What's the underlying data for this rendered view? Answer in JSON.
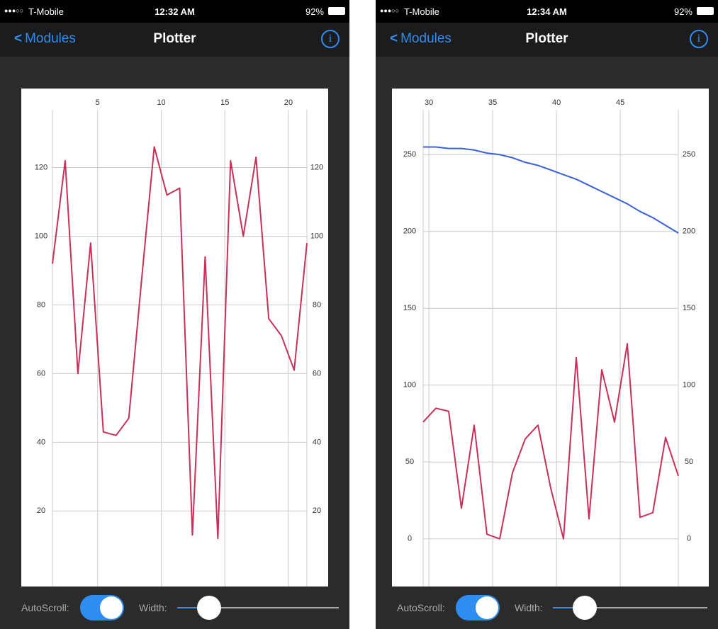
{
  "screens": [
    {
      "status": {
        "carrier": "T-Mobile",
        "time": "12:32 AM",
        "battery": "92%"
      },
      "nav": {
        "back": "Modules",
        "title": "Plotter"
      },
      "controls": {
        "autoscroll": "AutoScroll:",
        "width": "Width:"
      }
    },
    {
      "status": {
        "carrier": "T-Mobile",
        "time": "12:34 AM",
        "battery": "92%"
      },
      "nav": {
        "back": "Modules",
        "title": "Plotter"
      },
      "controls": {
        "autoscroll": "AutoScroll:",
        "width": "Width:"
      }
    }
  ],
  "chart_data": [
    {
      "type": "line",
      "grid": true,
      "x": [
        1.45,
        2.45,
        3.45,
        4.45,
        5.45,
        6.45,
        7.45,
        8.45,
        9.45,
        10.45,
        11.45,
        12.45,
        13.45,
        14.45,
        15.45,
        16.45,
        17.45,
        18.45,
        19.45,
        20.45,
        21.45
      ],
      "xlim": [
        1.45,
        21.45
      ],
      "xticks": [
        5,
        10,
        15,
        20
      ],
      "ylim": [
        -2,
        143
      ],
      "yticks": [
        20,
        40,
        60,
        80,
        100,
        120
      ],
      "series": [
        {
          "color": "#c8305a",
          "values": [
            92,
            122,
            60,
            98,
            43,
            42,
            47,
            87,
            126,
            112,
            114,
            13,
            94,
            12,
            122,
            100,
            123,
            76,
            71,
            61,
            98
          ]
        }
      ]
    },
    {
      "type": "line",
      "grid": true,
      "x": [
        29.55,
        30.55,
        31.55,
        32.55,
        33.55,
        34.55,
        35.55,
        36.55,
        37.55,
        38.55,
        39.55,
        40.55,
        41.55,
        42.55,
        43.55,
        44.55,
        45.55,
        46.55,
        47.55,
        48.55,
        49.55
      ],
      "xlim": [
        29.55,
        49.55
      ],
      "xticks": [
        30,
        35,
        40,
        45
      ],
      "ylim": [
        -31,
        293
      ],
      "yticks": [
        0,
        50,
        100,
        150,
        200,
        250
      ],
      "series": [
        {
          "color": "#3a5fd8",
          "values": [
            255,
            255,
            254,
            254,
            253,
            251,
            250,
            248,
            245,
            243,
            240,
            237,
            234,
            230,
            226,
            222,
            218,
            213,
            209,
            204,
            199
          ]
        },
        {
          "color": "#c8305a",
          "values": [
            76,
            85,
            83,
            20,
            74,
            3,
            0,
            43,
            65,
            74,
            33,
            0,
            118,
            13,
            110,
            76,
            127,
            14,
            17,
            66,
            41
          ]
        }
      ]
    }
  ]
}
